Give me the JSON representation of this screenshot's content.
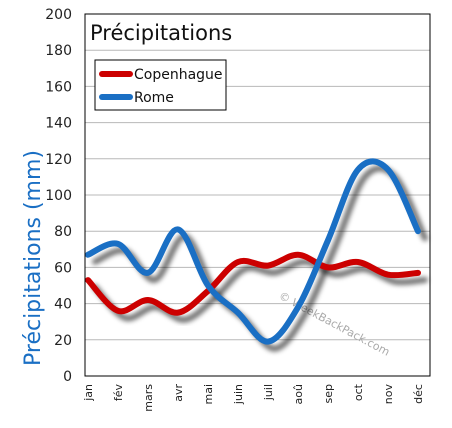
{
  "chart_data": {
    "type": "line",
    "title": "Précipitations",
    "ylabel": "Précipitations (mm)",
    "xlabel": "",
    "categories": [
      "jan",
      "fév",
      "mars",
      "avr",
      "mai",
      "juin",
      "juil",
      "aoû",
      "sep",
      "oct",
      "nov",
      "déc"
    ],
    "ylim": [
      0,
      200
    ],
    "yticks": [
      "0",
      "20",
      "40",
      "60",
      "80",
      "100",
      "120",
      "140",
      "160",
      "180",
      "200"
    ],
    "grid": "horizontal",
    "legend_position": "top-left",
    "series": [
      {
        "name": "Copenhague",
        "color": "#cc0000",
        "values": [
          53,
          36,
          42,
          35,
          47,
          63,
          61,
          67,
          60,
          63,
          56,
          57
        ]
      },
      {
        "name": "Rome",
        "color": "#1a6fc4",
        "values": [
          67,
          73,
          57,
          81,
          50,
          35,
          19,
          38,
          75,
          114,
          114,
          80
        ]
      }
    ],
    "watermark": "© WeekBackPack.com"
  }
}
